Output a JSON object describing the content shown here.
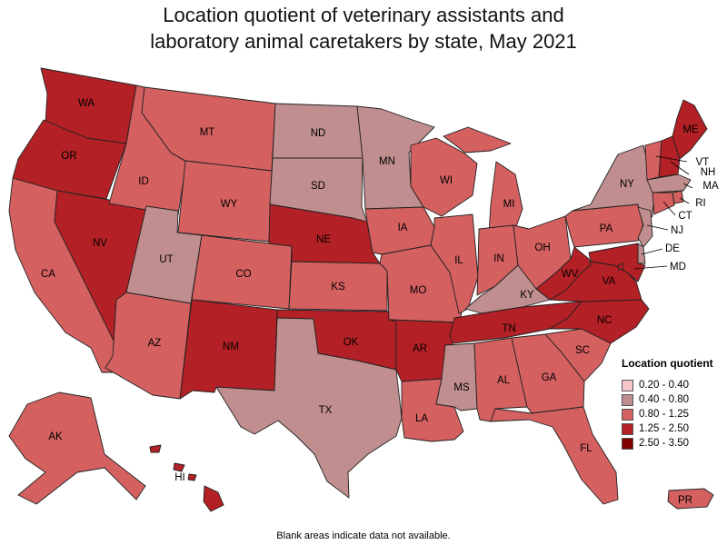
{
  "title_line1": "Location quotient of veterinary assistants and",
  "title_line2": "laboratory animal caretakers by state, May 2021",
  "legend": {
    "title": "Location quotient",
    "items": [
      {
        "label": "0.20 - 0.40",
        "color": "#f5c6c9"
      },
      {
        "label": "0.40 - 0.80",
        "color": "#c08e8e"
      },
      {
        "label": "0.80 - 1.25",
        "color": "#d46060"
      },
      {
        "label": "1.25 - 2.50",
        "color": "#b32025"
      },
      {
        "label": "2.50 - 3.50",
        "color": "#800000"
      }
    ]
  },
  "footnote": "Blank areas indicate data not available.",
  "states": {
    "WA": {
      "label": "WA",
      "class": 3
    },
    "OR": {
      "label": "OR",
      "class": 3
    },
    "CA": {
      "label": "CA",
      "class": 2
    },
    "NV": {
      "label": "NV",
      "class": 3
    },
    "ID": {
      "label": "ID",
      "class": 2
    },
    "MT": {
      "label": "MT",
      "class": 2
    },
    "WY": {
      "label": "WY",
      "class": 2
    },
    "UT": {
      "label": "UT",
      "class": 1
    },
    "AZ": {
      "label": "AZ",
      "class": 2
    },
    "CO": {
      "label": "CO",
      "class": 2
    },
    "NM": {
      "label": "NM",
      "class": 3
    },
    "ND": {
      "label": "ND",
      "class": 1
    },
    "SD": {
      "label": "SD",
      "class": 1
    },
    "NE": {
      "label": "NE",
      "class": 3
    },
    "KS": {
      "label": "KS",
      "class": 2
    },
    "OK": {
      "label": "OK",
      "class": 3
    },
    "TX": {
      "label": "TX",
      "class": 1
    },
    "MN": {
      "label": "MN",
      "class": 1
    },
    "IA": {
      "label": "IA",
      "class": 2
    },
    "MO": {
      "label": "MO",
      "class": 2
    },
    "AR": {
      "label": "AR",
      "class": 3
    },
    "LA": {
      "label": "LA",
      "class": 2
    },
    "WI": {
      "label": "WI",
      "class": 2
    },
    "IL": {
      "label": "IL",
      "class": 2
    },
    "MI": {
      "label": "MI",
      "class": 2
    },
    "IN": {
      "label": "IN",
      "class": 2
    },
    "OH": {
      "label": "OH",
      "class": 2
    },
    "KY": {
      "label": "KY",
      "class": 1
    },
    "TN": {
      "label": "TN",
      "class": 3
    },
    "MS": {
      "label": "MS",
      "class": 1
    },
    "AL": {
      "label": "AL",
      "class": 2
    },
    "GA": {
      "label": "GA",
      "class": 2
    },
    "FL": {
      "label": "FL",
      "class": 2
    },
    "SC": {
      "label": "SC",
      "class": 2
    },
    "NC": {
      "label": "NC",
      "class": 3
    },
    "VA": {
      "label": "VA",
      "class": 3
    },
    "WV": {
      "label": "WV",
      "class": 3
    },
    "PA": {
      "label": "PA",
      "class": 2
    },
    "NY": {
      "label": "NY",
      "class": 1
    },
    "ME": {
      "label": "ME",
      "class": 3
    },
    "VT": {
      "label": "VT",
      "class": 2
    },
    "NH": {
      "label": "NH",
      "class": 3
    },
    "MA": {
      "label": "MA",
      "class": 1
    },
    "RI": {
      "label": "RI",
      "class": 2
    },
    "CT": {
      "label": "CT",
      "class": 2
    },
    "NJ": {
      "label": "NJ",
      "class": 1
    },
    "DE": {
      "label": "DE",
      "class": 1
    },
    "MD": {
      "label": "MD",
      "class": 3
    },
    "DC": {
      "label": "",
      "class": 3
    },
    "AK": {
      "label": "AK",
      "class": 2
    },
    "HI": {
      "label": "HI",
      "class": 3
    },
    "PR": {
      "label": "PR",
      "class": 2
    }
  }
}
